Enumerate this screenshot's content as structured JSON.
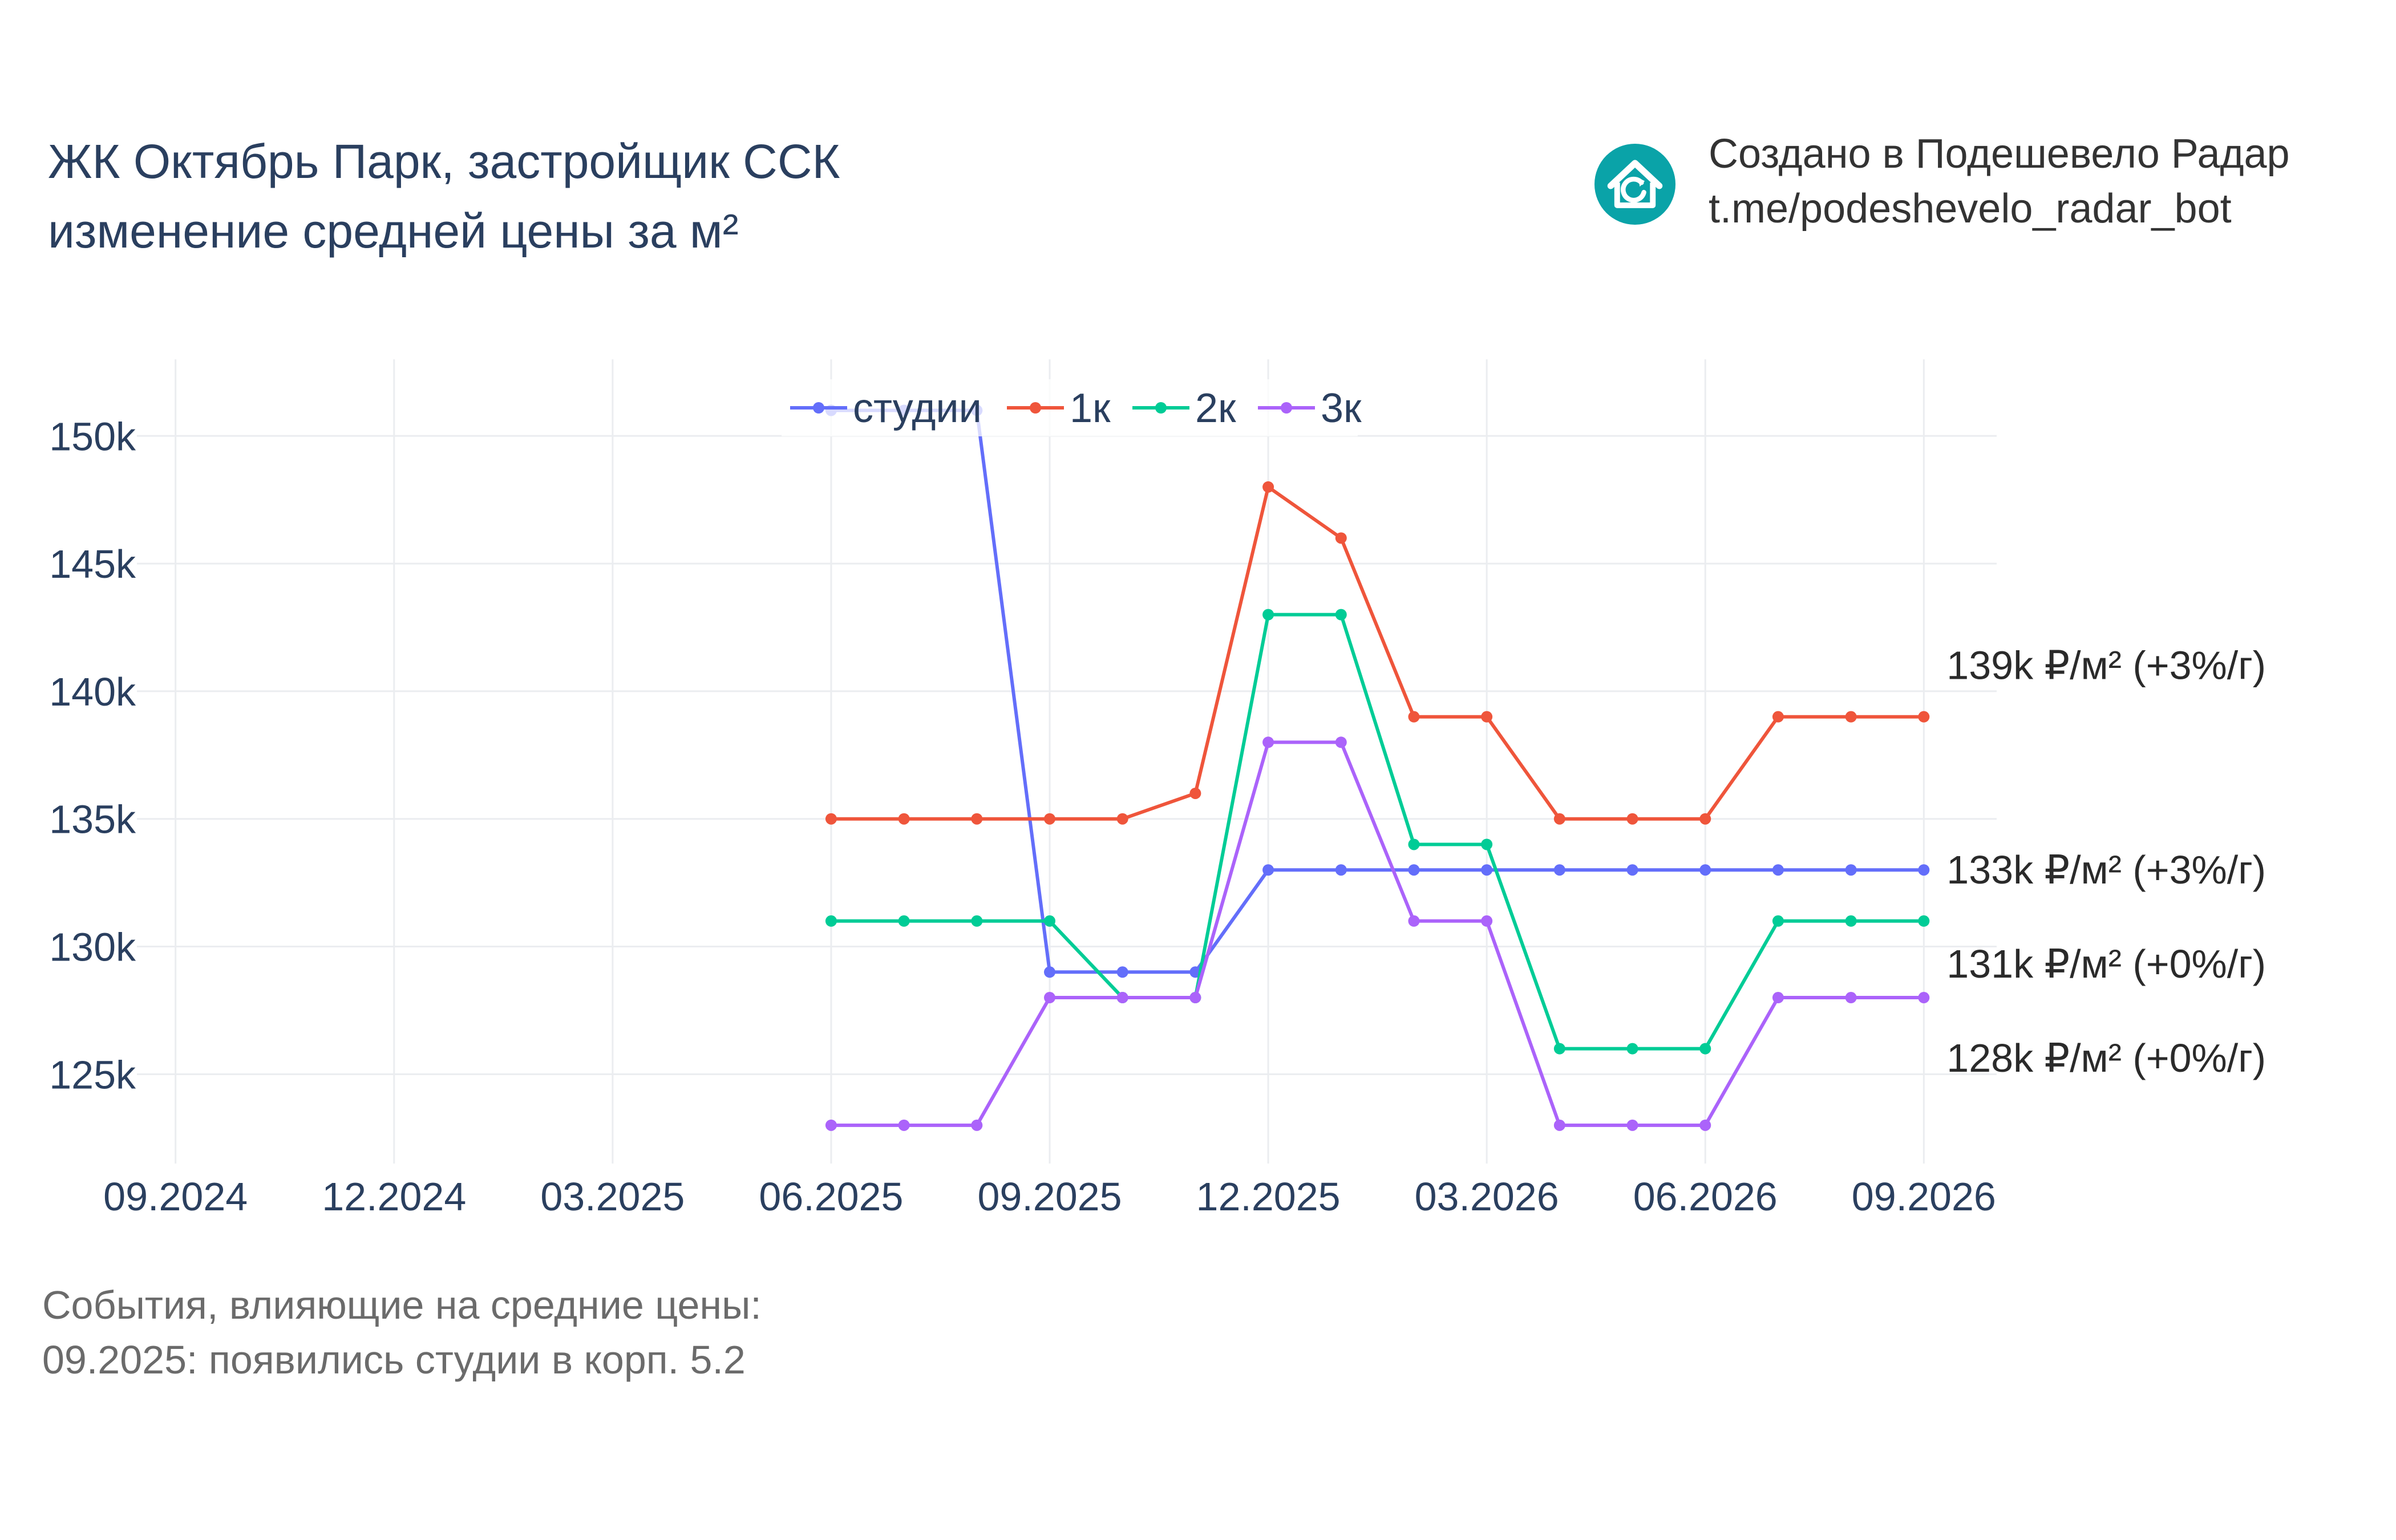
{
  "header": {
    "title_line1": "ЖК Октябрь Парк, застройщик ССК",
    "title_line2": "изменение средней цены за м²"
  },
  "brand": {
    "icon": "house-refresh-icon",
    "line1": "Создано в Подешевело Радар",
    "line2": "t.me/podeshevelo_radar_bot",
    "color": "#0aa3a8"
  },
  "events": {
    "heading": "События, влияющие на средние цены:",
    "items": [
      "09.2025: появились студии в корп. 5.2"
    ]
  },
  "chart_data": {
    "type": "line",
    "x": [
      "06.2025",
      "07.2025",
      "08.2025",
      "09.2025",
      "10.2025",
      "11.2025",
      "12.2025",
      "01.2026",
      "02.2026",
      "03.2026",
      "04.2026",
      "05.2026",
      "06.2026",
      "07.2026",
      "08.2026",
      "09.2026"
    ],
    "xticks": [
      "09.2024",
      "12.2024",
      "03.2025",
      "06.2025",
      "09.2025",
      "12.2025",
      "03.2026",
      "06.2026",
      "09.2026"
    ],
    "xlim": [
      "08.2024",
      "10.2026"
    ],
    "yticks": [
      125000,
      130000,
      135000,
      140000,
      145000,
      150000
    ],
    "ytick_labels": [
      "125k",
      "130k",
      "135k",
      "140k",
      "145k",
      "150k"
    ],
    "ylim": [
      121500,
      153000
    ],
    "grid": true,
    "legend_position": "top-center",
    "series": [
      {
        "name": "студии",
        "color": "#636efa",
        "values": [
          151000,
          151000,
          151000,
          129000,
          129000,
          129000,
          133000,
          133000,
          133000,
          133000,
          133000,
          133000,
          133000,
          133000,
          133000,
          133000
        ],
        "end_label": "133k ₽/м² (+3%/г)"
      },
      {
        "name": "1к",
        "color": "#ef553b",
        "values": [
          135000,
          135000,
          135000,
          135000,
          135000,
          136000,
          148000,
          146000,
          139000,
          139000,
          135000,
          135000,
          135000,
          139000,
          139000,
          139000
        ],
        "end_label": "139k ₽/м² (+3%/г)"
      },
      {
        "name": "2к",
        "color": "#00cc96",
        "values": [
          131000,
          131000,
          131000,
          131000,
          128000,
          128000,
          143000,
          143000,
          134000,
          134000,
          126000,
          126000,
          126000,
          131000,
          131000,
          131000
        ],
        "end_label": "131k ₽/м² (+0%/г)"
      },
      {
        "name": "3к",
        "color": "#ab63fa",
        "values": [
          123000,
          123000,
          123000,
          128000,
          128000,
          128000,
          138000,
          138000,
          131000,
          131000,
          123000,
          123000,
          123000,
          128000,
          128000,
          128000
        ],
        "end_label": "128k ₽/м² (+0%/г)"
      }
    ]
  }
}
